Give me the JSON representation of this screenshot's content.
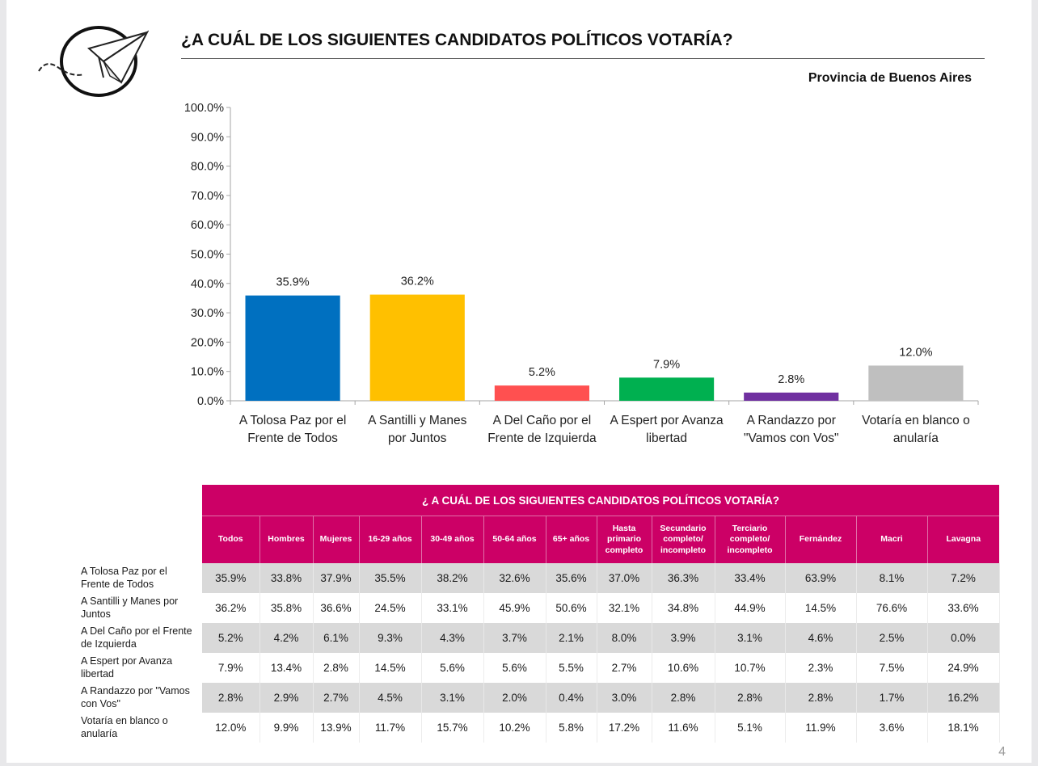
{
  "page": {
    "title": "¿A CUÁL DE LOS SIGUIENTES CANDIDATOS POLÍTICOS VOTARÍA?",
    "subtitle": "Provincia de Buenos Aires",
    "page_number": "4",
    "logo_icon": "paper-plane-circle-logo"
  },
  "chart_data": {
    "type": "bar",
    "title": "¿A CUÁL DE LOS SIGUIENTES CANDIDATOS POLÍTICOS VOTARÍA?",
    "subtitle": "Provincia de Buenos Aires",
    "xlabel": "",
    "ylabel": "",
    "ylim": [
      0,
      100
    ],
    "yticks": [
      "0.0%",
      "10.0%",
      "20.0%",
      "30.0%",
      "40.0%",
      "50.0%",
      "60.0%",
      "70.0%",
      "80.0%",
      "90.0%",
      "100.0%"
    ],
    "grid": false,
    "legend": "none",
    "categories": [
      [
        "A Tolosa Paz por el",
        "Frente de Todos"
      ],
      [
        "A Santilli y Manes",
        "por Juntos"
      ],
      [
        "A Del Caño por el",
        "Frente de Izquierda"
      ],
      [
        "A Espert por Avanza",
        "libertad"
      ],
      [
        "A Randazzo por",
        "\"Vamos con Vos\""
      ],
      [
        "Votaría en blanco o",
        "anularía"
      ]
    ],
    "values": [
      35.9,
      36.2,
      5.2,
      7.9,
      2.8,
      12.0
    ],
    "data_labels": [
      "35.9%",
      "36.2%",
      "5.2%",
      "7.9%",
      "2.8%",
      "12.0%"
    ],
    "colors": [
      "#0070c0",
      "#ffc000",
      "#ff5050",
      "#00b050",
      "#7030a0",
      "#bfbfbf"
    ]
  },
  "table": {
    "title": "¿ A  CUÁL DE LOS SIGUIENTES CANDIDATOS POLÍTICOS VOTARÍA?",
    "header_color": "#cc0066",
    "columns": [
      [
        "Todos"
      ],
      [
        "Hombres"
      ],
      [
        "Mujeres"
      ],
      [
        "16-29 años"
      ],
      [
        "30-49 años"
      ],
      [
        "50-64 años"
      ],
      [
        "65+ años"
      ],
      [
        "Hasta",
        "primario",
        "completo"
      ],
      [
        "Secundario",
        "completo/",
        "incompleto"
      ],
      [
        "Terciario",
        "completo/",
        "incompleto"
      ],
      [
        "Fernández"
      ],
      [
        "Macri"
      ],
      [
        "Lavagna"
      ]
    ],
    "rows": [
      {
        "label": [
          "A Tolosa Paz por el",
          "Frente de Todos"
        ],
        "values": [
          "35.9%",
          "33.8%",
          "37.9%",
          "35.5%",
          "38.2%",
          "32.6%",
          "35.6%",
          "37.0%",
          "36.3%",
          "33.4%",
          "63.9%",
          "8.1%",
          "7.2%"
        ]
      },
      {
        "label": [
          "A Santilli y Manes por",
          "Juntos"
        ],
        "values": [
          "36.2%",
          "35.8%",
          "36.6%",
          "24.5%",
          "33.1%",
          "45.9%",
          "50.6%",
          "32.1%",
          "34.8%",
          "44.9%",
          "14.5%",
          "76.6%",
          "33.6%"
        ]
      },
      {
        "label": [
          "A Del Caño por el Frente",
          "de Izquierda"
        ],
        "values": [
          "5.2%",
          "4.2%",
          "6.1%",
          "9.3%",
          "4.3%",
          "3.7%",
          "2.1%",
          "8.0%",
          "3.9%",
          "3.1%",
          "4.6%",
          "2.5%",
          "0.0%"
        ]
      },
      {
        "label": [
          "A Espert por Avanza",
          "libertad"
        ],
        "values": [
          "7.9%",
          "13.4%",
          "2.8%",
          "14.5%",
          "5.6%",
          "5.6%",
          "5.5%",
          "2.7%",
          "10.6%",
          "10.7%",
          "2.3%",
          "7.5%",
          "24.9%"
        ]
      },
      {
        "label": [
          "A Randazzo por \"Vamos",
          "con Vos\""
        ],
        "values": [
          "2.8%",
          "2.9%",
          "2.7%",
          "4.5%",
          "3.1%",
          "2.0%",
          "0.4%",
          "3.0%",
          "2.8%",
          "2.8%",
          "2.8%",
          "1.7%",
          "16.2%"
        ]
      },
      {
        "label": [
          "Votaría en blanco o",
          "anularía"
        ],
        "values": [
          "12.0%",
          "9.9%",
          "13.9%",
          "11.7%",
          "15.7%",
          "10.2%",
          "5.8%",
          "17.2%",
          "11.6%",
          "5.1%",
          "11.9%",
          "3.6%",
          "18.1%"
        ]
      }
    ]
  }
}
